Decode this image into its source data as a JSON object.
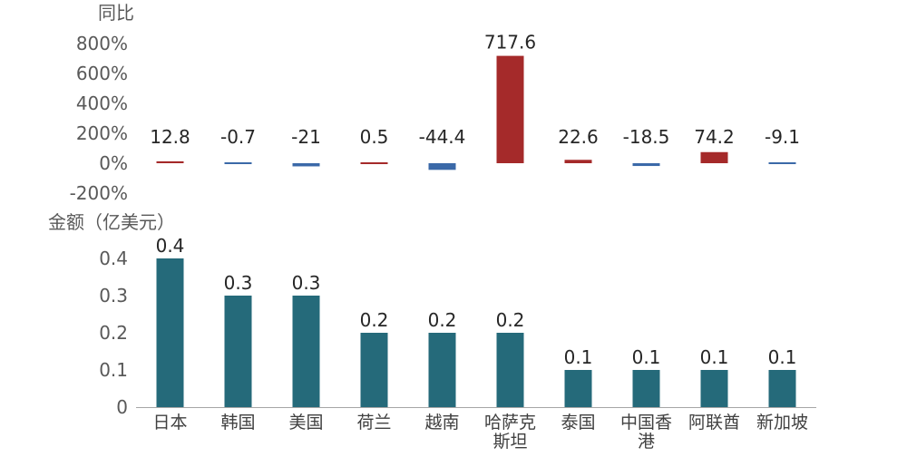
{
  "chart_data": [
    {
      "type": "bar",
      "ylabel": "同比",
      "categories": [
        "日本",
        "韩国",
        "美国",
        "荷兰",
        "越南",
        "哈萨克斯坦",
        "泰国",
        "中国香港",
        "阿联酋",
        "新加坡"
      ],
      "values": [
        12.8,
        -0.7,
        -21,
        0.5,
        -44.4,
        717.6,
        22.6,
        -18.5,
        74.2,
        -9.1
      ],
      "data_labels": [
        "12.8",
        "-0.7",
        "-21",
        "0.5",
        "-44.4",
        "717.6",
        "22.6",
        "-18.5",
        "74.2",
        "-9.1"
      ],
      "ylim": [
        -200,
        800
      ],
      "yticks": [
        800,
        600,
        400,
        200,
        0,
        -200
      ],
      "ytick_labels": [
        "800%",
        "600%",
        "400%",
        "200%",
        "0%",
        "-200%"
      ],
      "grid": false,
      "colors": {
        "positive": "#A52A2A",
        "negative": "#3B69A8"
      }
    },
    {
      "type": "bar",
      "ylabel": "金额（亿美元）",
      "categories": [
        "日本",
        "韩国",
        "美国",
        "荷兰",
        "越南",
        "哈萨克斯坦",
        "泰国",
        "中国香港",
        "阿联酋",
        "新加坡"
      ],
      "category_lines": [
        [
          "日本"
        ],
        [
          "韩国"
        ],
        [
          "美国"
        ],
        [
          "荷兰"
        ],
        [
          "越南"
        ],
        [
          "哈萨克",
          "斯坦"
        ],
        [
          "泰国"
        ],
        [
          "中国香",
          "港"
        ],
        [
          "阿联酋"
        ],
        [
          "新加坡"
        ]
      ],
      "values": [
        0.4,
        0.3,
        0.3,
        0.2,
        0.2,
        0.2,
        0.1,
        0.1,
        0.1,
        0.1
      ],
      "data_labels": [
        "0.4",
        "0.3",
        "0.3",
        "0.2",
        "0.2",
        "0.2",
        "0.1",
        "0.1",
        "0.1",
        "0.1"
      ],
      "ylim": [
        0,
        0.4
      ],
      "yticks": [
        0.4,
        0.3,
        0.2,
        0.1,
        0
      ],
      "ytick_labels": [
        "0.4",
        "0.3",
        "0.2",
        "0.1",
        "0"
      ],
      "grid": false,
      "colors": {
        "bar": "#256A7A",
        "axis": "#A6A6A6"
      }
    }
  ]
}
